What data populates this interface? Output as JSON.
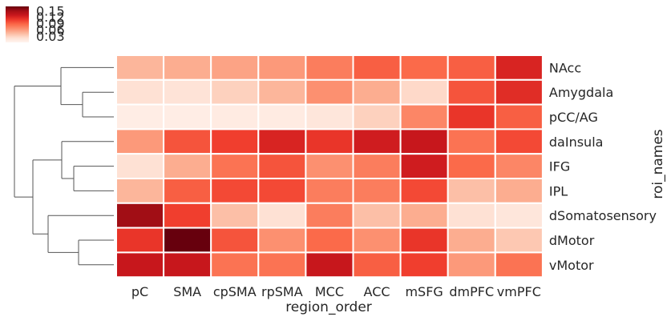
{
  "chart_data": {
    "type": "heatmap",
    "xlabel": "region_order",
    "ylabel": "roi_names",
    "columns": [
      "pC",
      "SMA",
      "cpSMA",
      "rpSMA",
      "MCC",
      "ACC",
      "mSFG",
      "dmPFC",
      "vmPFC"
    ],
    "rows": [
      "NAcc",
      "Amygdala",
      "pCC/AG",
      "daInsula",
      "IFG",
      "IPL",
      "dSomatosensory",
      "dMotor",
      "vMotor"
    ],
    "values": [
      [
        0.045,
        0.05,
        0.055,
        0.06,
        0.075,
        0.09,
        0.085,
        0.09,
        0.12
      ],
      [
        0.02,
        0.018,
        0.03,
        0.045,
        0.065,
        0.05,
        0.025,
        0.095,
        0.115
      ],
      [
        0.008,
        0.008,
        0.01,
        0.01,
        0.015,
        0.03,
        0.07,
        0.11,
        0.09
      ],
      [
        0.06,
        0.095,
        0.105,
        0.12,
        0.11,
        0.125,
        0.13,
        0.08,
        0.1
      ],
      [
        0.02,
        0.05,
        0.08,
        0.095,
        0.065,
        0.075,
        0.125,
        0.085,
        0.07
      ],
      [
        0.045,
        0.09,
        0.1,
        0.1,
        0.075,
        0.075,
        0.1,
        0.04,
        0.05
      ],
      [
        0.15,
        0.105,
        0.04,
        0.02,
        0.075,
        0.04,
        0.05,
        0.02,
        0.015
      ],
      [
        0.11,
        0.17,
        0.095,
        0.065,
        0.085,
        0.065,
        0.11,
        0.05,
        0.035
      ],
      [
        0.13,
        0.13,
        0.08,
        0.08,
        0.13,
        0.09,
        0.105,
        0.06,
        0.08
      ]
    ],
    "colorbar": {
      "ticks": [
        "0.15",
        "0.12",
        "0.09",
        "0.06",
        "0.03"
      ],
      "range": [
        0.0,
        0.17
      ],
      "colormap": "Reds"
    },
    "dendrogram": "rows",
    "grid": false
  }
}
